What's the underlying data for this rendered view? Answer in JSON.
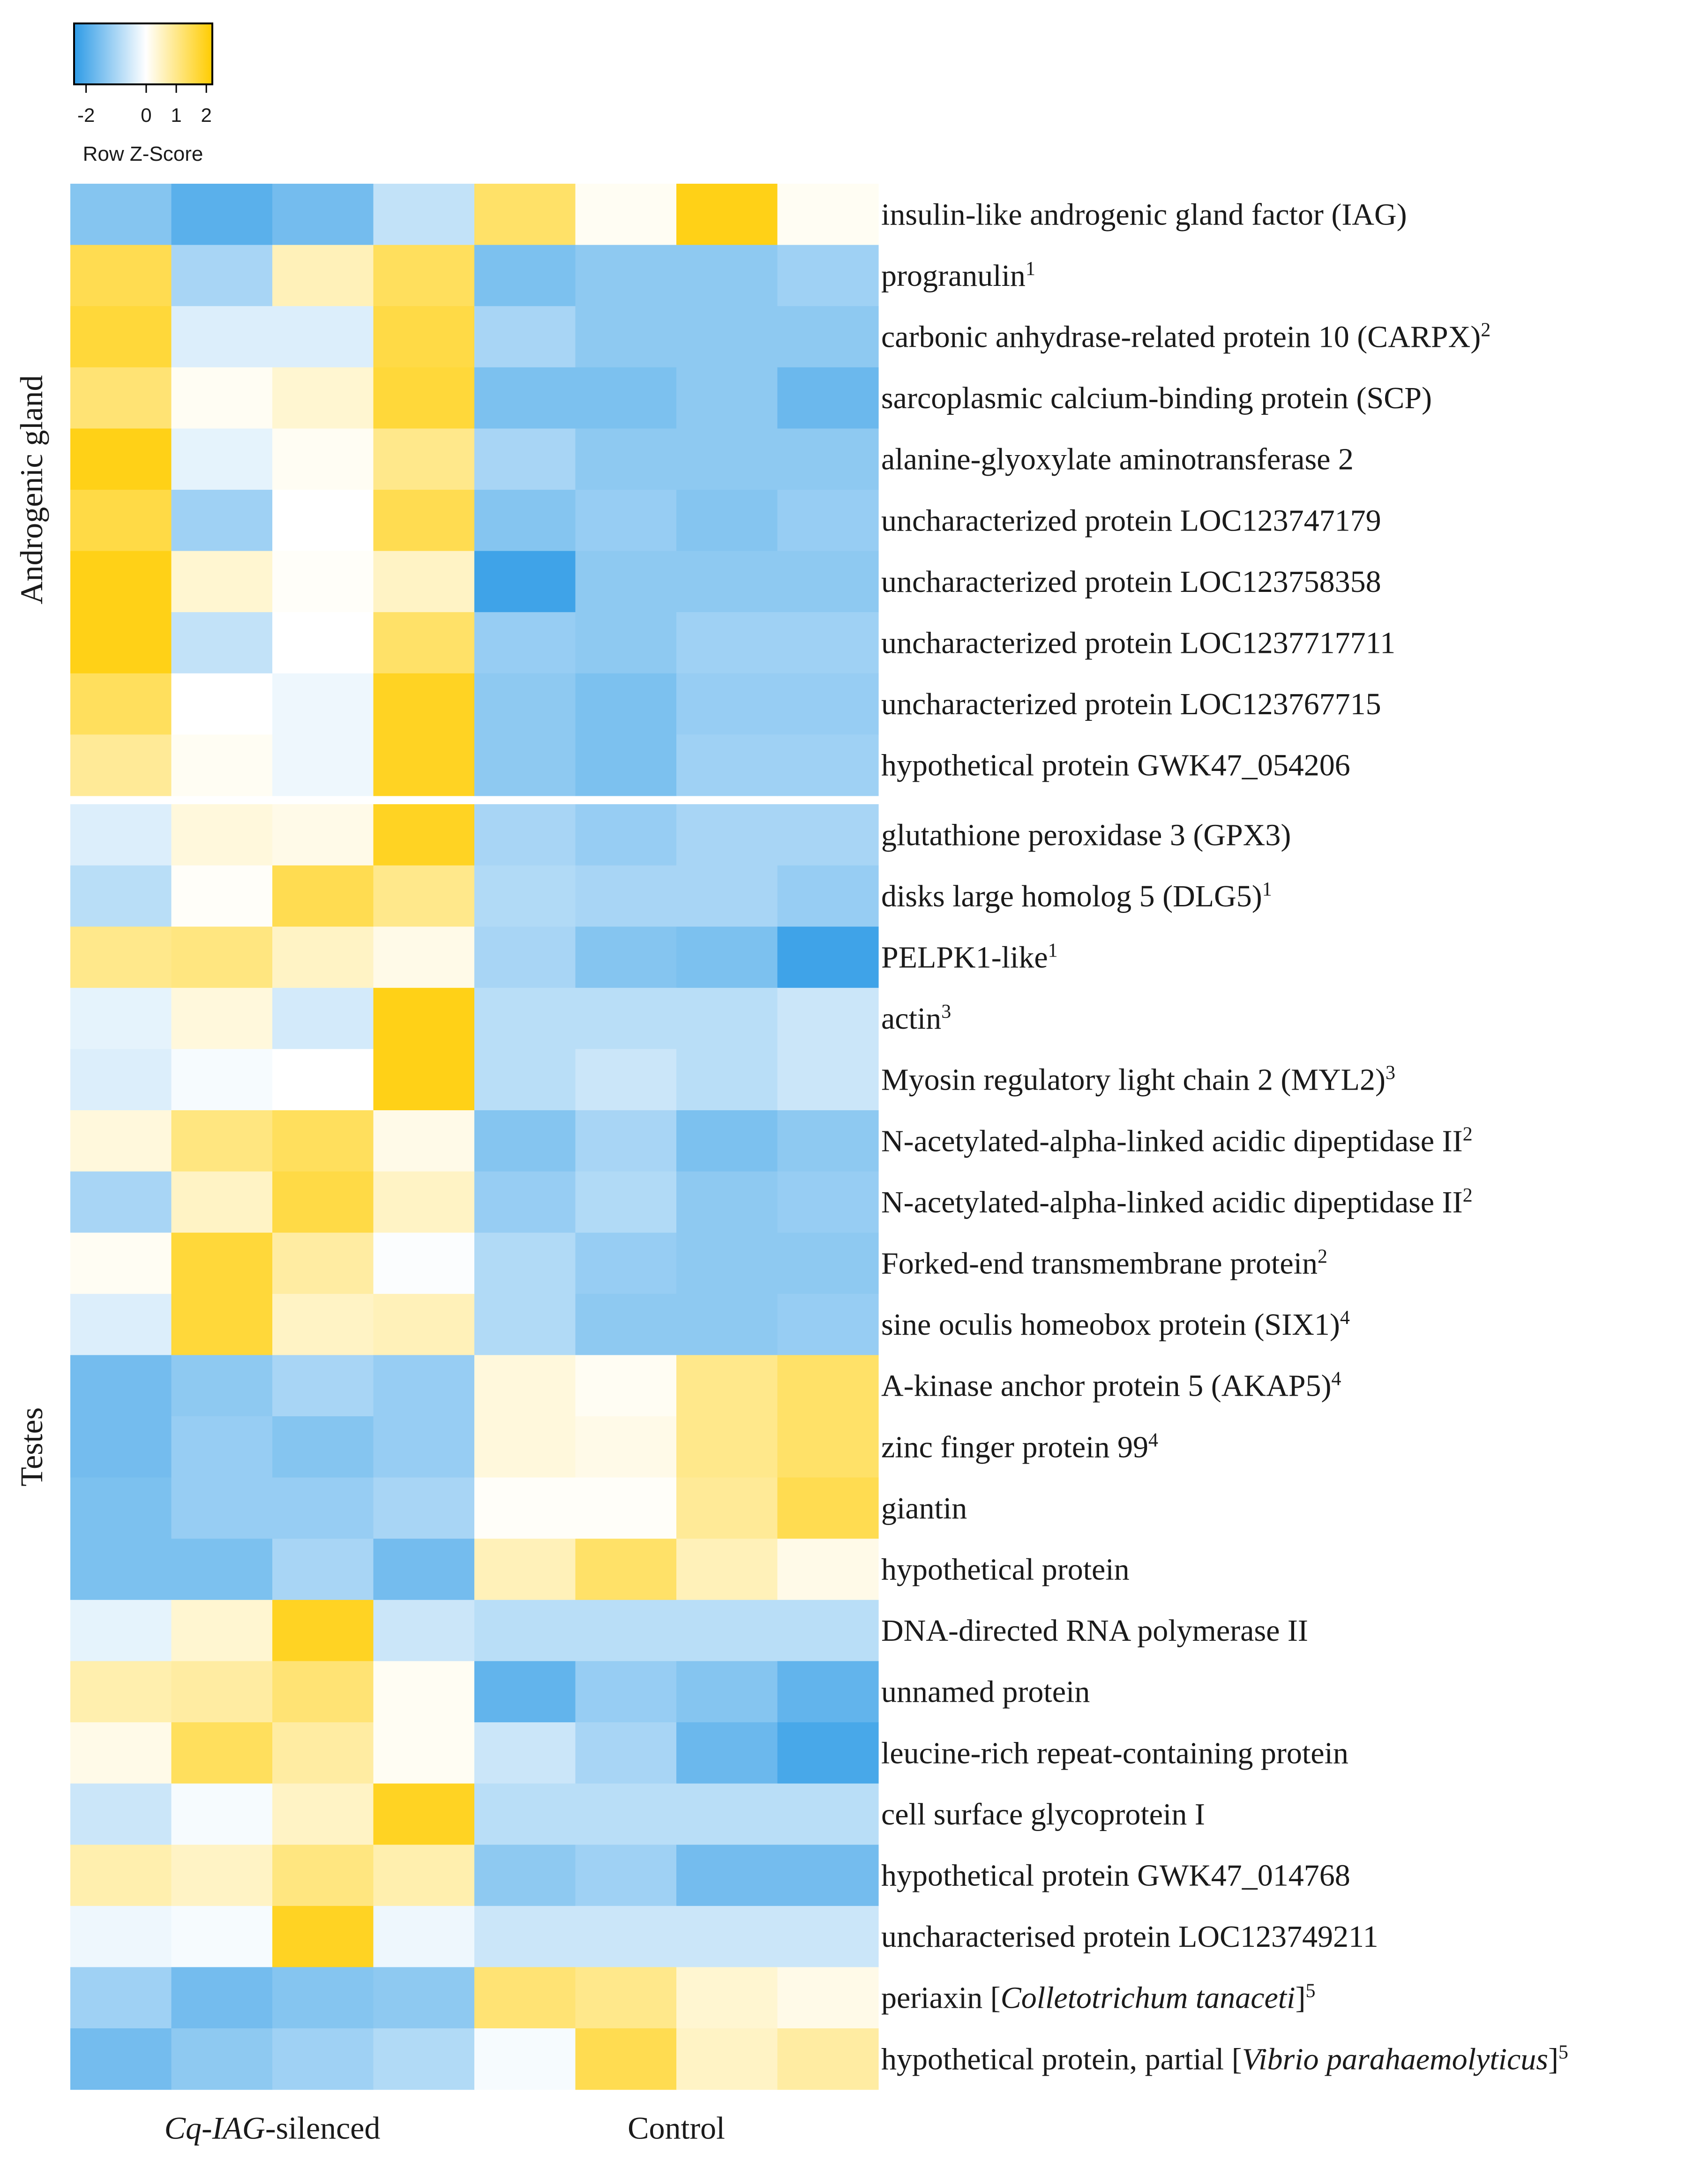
{
  "chart_data": {
    "type": "heatmap",
    "color_scale": {
      "title": "Row Z-Score",
      "ticks": [
        "-2",
        "0",
        "1",
        "2"
      ],
      "tick_values": [
        -2,
        0,
        1,
        2
      ],
      "range": [
        -2.4,
        2.2
      ],
      "colors": {
        "low": "#2e9be6",
        "mid": "#ffffff",
        "high": "#ffcc00"
      }
    },
    "groups": [
      {
        "label_parts": [
          {
            "text": "Cq-IAG",
            "italic": true
          },
          {
            "text": "-silenced",
            "italic": false
          }
        ],
        "columns": [
          0,
          1,
          2,
          3
        ]
      },
      {
        "label_parts": [
          {
            "text": "Control",
            "italic": false
          }
        ],
        "columns": [
          4,
          5,
          6,
          7
        ]
      }
    ],
    "row_groups": [
      {
        "label": "Androgenic gland",
        "rows": [
          0,
          9
        ]
      },
      {
        "label": "Testes",
        "rows": [
          10,
          30
        ]
      }
    ],
    "rows": [
      {
        "parts": [
          {
            "t": "insulin-like androgenic gland factor (IAG)"
          }
        ],
        "values": [
          -1.4,
          -1.9,
          -1.6,
          -0.7,
          1.3,
          0.1,
          2.0,
          0.1
        ]
      },
      {
        "parts": [
          {
            "t": "progranulin"
          },
          {
            "t": "1",
            "sup": true
          }
        ],
        "values": [
          1.5,
          -1.0,
          0.6,
          1.4,
          -1.5,
          -1.3,
          -1.3,
          -1.1
        ]
      },
      {
        "parts": [
          {
            "t": "carbonic anhydrase-related protein 10 (CARPX)"
          },
          {
            "t": "2",
            "sup": true
          }
        ],
        "values": [
          1.7,
          -0.4,
          -0.4,
          1.6,
          -1.0,
          -1.3,
          -1.3,
          -1.3
        ]
      },
      {
        "parts": [
          {
            "t": "sarcoplasmic calcium-binding protein (SCP)"
          }
        ],
        "values": [
          1.2,
          0.1,
          0.4,
          1.7,
          -1.5,
          -1.5,
          -1.3,
          -1.7
        ]
      },
      {
        "parts": [
          {
            "t": "alanine-glyoxylate aminotransferase 2"
          }
        ],
        "values": [
          2.0,
          -0.3,
          0.1,
          1.0,
          -1.0,
          -1.3,
          -1.3,
          -1.3
        ]
      },
      {
        "parts": [
          {
            "t": "uncharacterized protein LOC123747179"
          }
        ],
        "values": [
          1.6,
          -1.1,
          0.0,
          1.5,
          -1.4,
          -1.2,
          -1.4,
          -1.2
        ]
      },
      {
        "parts": [
          {
            "t": "uncharacterized protein LOC123758358"
          }
        ],
        "values": [
          2.0,
          0.4,
          0.05,
          0.5,
          -2.2,
          -1.3,
          -1.3,
          -1.3
        ]
      },
      {
        "parts": [
          {
            "t": "uncharacterized protein LOC1237717711"
          }
        ],
        "values": [
          2.0,
          -0.7,
          0.0,
          1.3,
          -1.2,
          -1.3,
          -1.1,
          -1.1
        ]
      },
      {
        "parts": [
          {
            "t": "uncharacterized protein LOC123767715"
          }
        ],
        "values": [
          1.4,
          0.0,
          -0.2,
          1.9,
          -1.3,
          -1.5,
          -1.2,
          -1.2
        ]
      },
      {
        "parts": [
          {
            "t": "hypothetical protein GWK47_054206"
          }
        ],
        "values": [
          0.9,
          0.1,
          -0.2,
          1.9,
          -1.3,
          -1.5,
          -1.1,
          -1.1
        ]
      },
      {
        "parts": [
          {
            "t": "glutathione peroxidase 3 (GPX3)"
          }
        ],
        "values": [
          -0.4,
          0.3,
          0.2,
          1.9,
          -1.0,
          -1.2,
          -1.0,
          -1.0
        ]
      },
      {
        "parts": [
          {
            "t": "disks large homolog 5 (DLG5)"
          },
          {
            "t": "1",
            "sup": true
          }
        ],
        "values": [
          -0.8,
          0.05,
          1.5,
          1.0,
          -0.9,
          -1.0,
          -1.0,
          -1.2
        ]
      },
      {
        "parts": [
          {
            "t": "PELPK1-like"
          },
          {
            "t": "1",
            "sup": true
          }
        ],
        "values": [
          1.0,
          1.1,
          0.5,
          0.2,
          -1.0,
          -1.4,
          -1.5,
          -2.2
        ]
      },
      {
        "parts": [
          {
            "t": "actin"
          },
          {
            "t": "3",
            "sup": true
          }
        ],
        "values": [
          -0.3,
          0.3,
          -0.5,
          2.0,
          -0.8,
          -0.8,
          -0.8,
          -0.6
        ]
      },
      {
        "parts": [
          {
            "t": "Myosin regulatory light chain 2 (MYL2)"
          },
          {
            "t": "3",
            "sup": true
          }
        ],
        "values": [
          -0.4,
          -0.1,
          0.0,
          2.0,
          -0.8,
          -0.6,
          -0.8,
          -0.6
        ]
      },
      {
        "parts": [
          {
            "t": "N-acetylated-alpha-linked acidic dipeptidase II"
          },
          {
            "t": "2",
            "sup": true
          }
        ],
        "values": [
          0.3,
          1.1,
          1.4,
          0.2,
          -1.4,
          -1.0,
          -1.5,
          -1.3
        ]
      },
      {
        "parts": [
          {
            "t": "N-acetylated-alpha-linked acidic dipeptidase II"
          },
          {
            "t": "2",
            "sup": true
          }
        ],
        "values": [
          -1.0,
          0.5,
          1.6,
          0.5,
          -1.2,
          -0.9,
          -1.3,
          -1.2
        ]
      },
      {
        "parts": [
          {
            "t": "Forked-end transmembrane protein"
          },
          {
            "t": "2",
            "sup": true
          }
        ],
        "values": [
          0.1,
          1.7,
          0.8,
          -0.05,
          -0.9,
          -1.2,
          -1.3,
          -1.3
        ]
      },
      {
        "parts": [
          {
            "t": "sine oculis homeobox protein (SIX1)"
          },
          {
            "t": "4",
            "sup": true
          }
        ],
        "values": [
          -0.4,
          1.7,
          0.5,
          0.6,
          -0.9,
          -1.3,
          -1.3,
          -1.2
        ]
      },
      {
        "parts": [
          {
            "t": "A-kinase anchor protein 5 (AKAP5)"
          },
          {
            "t": "4",
            "sup": true
          }
        ],
        "values": [
          -1.6,
          -1.3,
          -1.0,
          -1.2,
          0.3,
          0.1,
          1.0,
          1.3
        ]
      },
      {
        "parts": [
          {
            "t": "zinc finger protein 99"
          },
          {
            "t": "4",
            "sup": true
          }
        ],
        "values": [
          -1.6,
          -1.2,
          -1.4,
          -1.2,
          0.3,
          0.2,
          1.0,
          1.3
        ]
      },
      {
        "parts": [
          {
            "t": "giantin"
          }
        ],
        "values": [
          -1.5,
          -1.2,
          -1.2,
          -1.0,
          0.05,
          0.05,
          0.9,
          1.5
        ]
      },
      {
        "parts": [
          {
            "t": "hypothetical protein"
          }
        ],
        "values": [
          -1.5,
          -1.5,
          -1.0,
          -1.6,
          0.6,
          1.3,
          0.6,
          0.2
        ]
      },
      {
        "parts": [
          {
            "t": "DNA-directed RNA polymerase II"
          }
        ],
        "values": [
          -0.3,
          0.4,
          1.9,
          -0.6,
          -0.8,
          -0.8,
          -0.8,
          -0.8
        ]
      },
      {
        "parts": [
          {
            "t": "unnamed protein"
          }
        ],
        "values": [
          0.7,
          0.8,
          1.2,
          0.1,
          -1.8,
          -1.2,
          -1.4,
          -1.8
        ]
      },
      {
        "parts": [
          {
            "t": "leucine-rich repeat-containing protein"
          }
        ],
        "values": [
          0.2,
          1.4,
          0.8,
          0.1,
          -0.6,
          -1.0,
          -1.7,
          -2.1
        ]
      },
      {
        "parts": [
          {
            "t": "cell surface glycoprotein I"
          }
        ],
        "values": [
          -0.6,
          -0.1,
          0.5,
          1.9,
          -0.8,
          -0.8,
          -0.8,
          -0.8
        ]
      },
      {
        "parts": [
          {
            "t": "hypothetical protein GWK47_014768"
          }
        ],
        "values": [
          0.7,
          0.5,
          1.1,
          0.7,
          -1.3,
          -1.1,
          -1.6,
          -1.6
        ]
      },
      {
        "parts": [
          {
            "t": "uncharacterised protein LOC123749211"
          }
        ],
        "values": [
          -0.2,
          -0.1,
          1.9,
          -0.2,
          -0.6,
          -0.6,
          -0.6,
          -0.6
        ]
      },
      {
        "parts": [
          {
            "t": "periaxin ["
          },
          {
            "t": "Colletotrichum tanaceti",
            "i": true
          },
          {
            "t": "]"
          },
          {
            "t": "5",
            "sup": true
          }
        ],
        "values": [
          -1.1,
          -1.6,
          -1.4,
          -1.3,
          1.2,
          1.0,
          0.4,
          0.2
        ]
      },
      {
        "parts": [
          {
            "t": "hypothetical protein, partial ["
          },
          {
            "t": "Vibrio parahaemolyticus",
            "i": true
          },
          {
            "t": "]"
          },
          {
            "t": "5",
            "sup": true
          }
        ],
        "values": [
          -1.6,
          -1.3,
          -1.1,
          -0.9,
          -0.1,
          1.5,
          0.5,
          0.8
        ]
      }
    ]
  }
}
